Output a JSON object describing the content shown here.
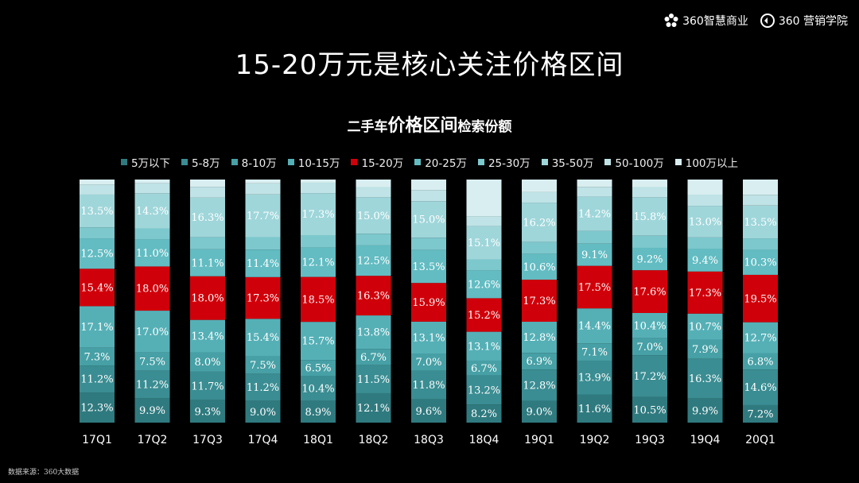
{
  "header": {
    "logo1_text": "360智慧商业",
    "logo1_icon": "flower-icon",
    "logo2_text": "360 营销学院",
    "logo2_icon": "360-circle-icon",
    "title": "15-20万元是核心关注价格区间",
    "subtitle_pre": "二手车",
    "subtitle_emph": "价格区间",
    "subtitle_post": "检索份额"
  },
  "source": "数据来源：360大数据",
  "chart_data": {
    "type": "bar",
    "stacked": true,
    "normalized": true,
    "title": "二手车价格区间检索份额",
    "categories": [
      "17Q1",
      "17Q2",
      "17Q3",
      "17Q4",
      "18Q1",
      "18Q2",
      "18Q3",
      "18Q4",
      "19Q1",
      "19Q2",
      "19Q3",
      "19Q4",
      "20Q1"
    ],
    "series": [
      {
        "name": "5万以下",
        "color": "#2f7a7f",
        "values": [
          12.3,
          9.9,
          9.3,
          9.0,
          8.9,
          12.1,
          9.6,
          8.2,
          9.0,
          11.6,
          10.5,
          9.9,
          7.2
        ],
        "labels": [
          "12.3%",
          "9.9%",
          "9.3%",
          "9.0%",
          "8.9%",
          "12.1%",
          "9.6%",
          "8.2%",
          "9.0%",
          "11.6%",
          "10.5%",
          "9.9%",
          "7.2%"
        ]
      },
      {
        "name": "5-8万",
        "color": "#3a8d92",
        "values": [
          11.2,
          11.2,
          11.7,
          11.2,
          10.4,
          11.5,
          11.8,
          13.2,
          12.8,
          13.9,
          17.2,
          16.3,
          14.6
        ],
        "labels": [
          "11.2%",
          "11.2%",
          "11.7%",
          "11.2%",
          "10.4%",
          "11.5%",
          "11.8%",
          "13.2%",
          "12.8%",
          "13.9%",
          "17.2%",
          "16.3%",
          "14.6%"
        ]
      },
      {
        "name": "8-10万",
        "color": "#46a0a5",
        "values": [
          7.3,
          7.5,
          8.0,
          7.5,
          6.5,
          6.7,
          7.0,
          6.7,
          6.9,
          7.1,
          7.0,
          7.9,
          6.8
        ],
        "labels": [
          "7.3%",
          "7.5%",
          "8.0%",
          "7.5%",
          "6.5%",
          "6.7%",
          "7.0%",
          "6.7%",
          "6.9%",
          "7.1%",
          "7.0%",
          "7.9%",
          "6.8%"
        ]
      },
      {
        "name": "10-15万",
        "color": "#55b0b6",
        "values": [
          17.1,
          17.0,
          13.4,
          15.4,
          15.7,
          13.8,
          13.1,
          13.1,
          12.8,
          14.4,
          10.4,
          10.7,
          12.7
        ],
        "labels": [
          "17.1%",
          "17.0%",
          "13.4%",
          "15.4%",
          "15.7%",
          "13.8%",
          "13.1%",
          "13.1%",
          "12.8%",
          "14.4%",
          "10.4%",
          "10.7%",
          "12.7%"
        ]
      },
      {
        "name": "15-20万",
        "color": "#d0000a",
        "values": [
          15.4,
          18.0,
          18.0,
          17.3,
          18.5,
          16.3,
          15.9,
          15.2,
          17.3,
          17.5,
          17.6,
          17.3,
          19.5
        ],
        "labels": [
          "15.4%",
          "18.0%",
          "18.0%",
          "17.3%",
          "18.5%",
          "16.3%",
          "15.9%",
          "15.2%",
          "17.3%",
          "17.5%",
          "17.6%",
          "17.3%",
          "19.5%"
        ]
      },
      {
        "name": "20-25万",
        "color": "#62bcc2",
        "values": [
          12.5,
          11.0,
          11.1,
          11.4,
          12.1,
          12.5,
          13.5,
          12.6,
          10.6,
          9.1,
          9.2,
          9.4,
          10.3
        ],
        "labels": [
          "12.5%",
          "11.0%",
          "11.1%",
          "11.4%",
          "12.1%",
          "12.5%",
          "13.5%",
          "12.6%",
          "10.6%",
          "9.1%",
          "9.2%",
          "9.4%",
          "10.3%"
        ]
      },
      {
        "name": "25-30万",
        "color": "#7cc8cd",
        "values": [
          4.5,
          4.5,
          5.0,
          5.2,
          5.1,
          4.8,
          5.1,
          5.0,
          4.9,
          5.2,
          5.0,
          4.6,
          4.7
        ],
        "labels": [
          "",
          "",
          "",
          "",
          "",
          "",
          "",
          "",
          "",
          "",
          "",
          "",
          ""
        ]
      },
      {
        "name": "35-50万",
        "color": "#9fd6da",
        "values": [
          13.5,
          14.3,
          16.3,
          17.7,
          17.3,
          15.0,
          15.0,
          15.1,
          16.2,
          14.2,
          15.8,
          13.0,
          13.5
        ],
        "labels": [
          "13.5%",
          "14.3%",
          "16.3%",
          "17.7%",
          "17.3%",
          "15.0%",
          "15.0%",
          "15.1%",
          "16.2%",
          "14.2%",
          "15.8%",
          "13.0%",
          "13.5%"
        ]
      },
      {
        "name": "50-100万",
        "color": "#bfe3e6",
        "values": [
          4.2,
          4.1,
          4.5,
          4.6,
          4.3,
          4.2,
          4.6,
          4.5,
          4.3,
          4.0,
          4.2,
          4.6,
          4.4
        ],
        "labels": [
          "",
          "",
          "",
          "",
          "",
          "",
          "",
          "",
          "",
          "",
          "",
          "",
          ""
        ]
      },
      {
        "name": "100万以上",
        "color": "#d9eef0",
        "values": [
          2.0,
          1.5,
          3.0,
          1.6,
          1.3,
          3.1,
          4.3,
          16.6,
          5.2,
          3.0,
          3.1,
          6.2,
          6.3
        ],
        "labels": [
          "",
          "",
          "",
          "",
          "",
          "",
          "",
          "",
          "",
          "",
          "",
          "",
          ""
        ]
      }
    ]
  }
}
